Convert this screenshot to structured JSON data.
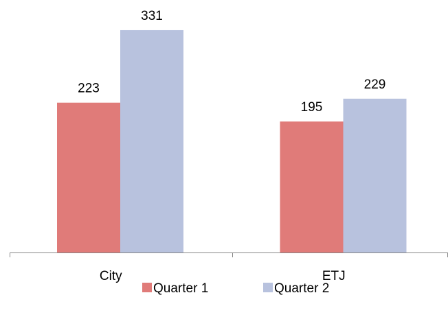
{
  "chart_data": {
    "type": "bar",
    "categories": [
      "City",
      "ETJ"
    ],
    "series": [
      {
        "name": "Quarter 1",
        "values": [
          223,
          195
        ],
        "color": "#E07B79"
      },
      {
        "name": "Quarter 2",
        "values": [
          331,
          229
        ],
        "color": "#B8C2DE"
      }
    ],
    "title": "",
    "xlabel": "",
    "ylabel": "",
    "ylim": [
      0,
      350
    ],
    "grid": false,
    "legend": "bottom",
    "data_labels": true
  }
}
